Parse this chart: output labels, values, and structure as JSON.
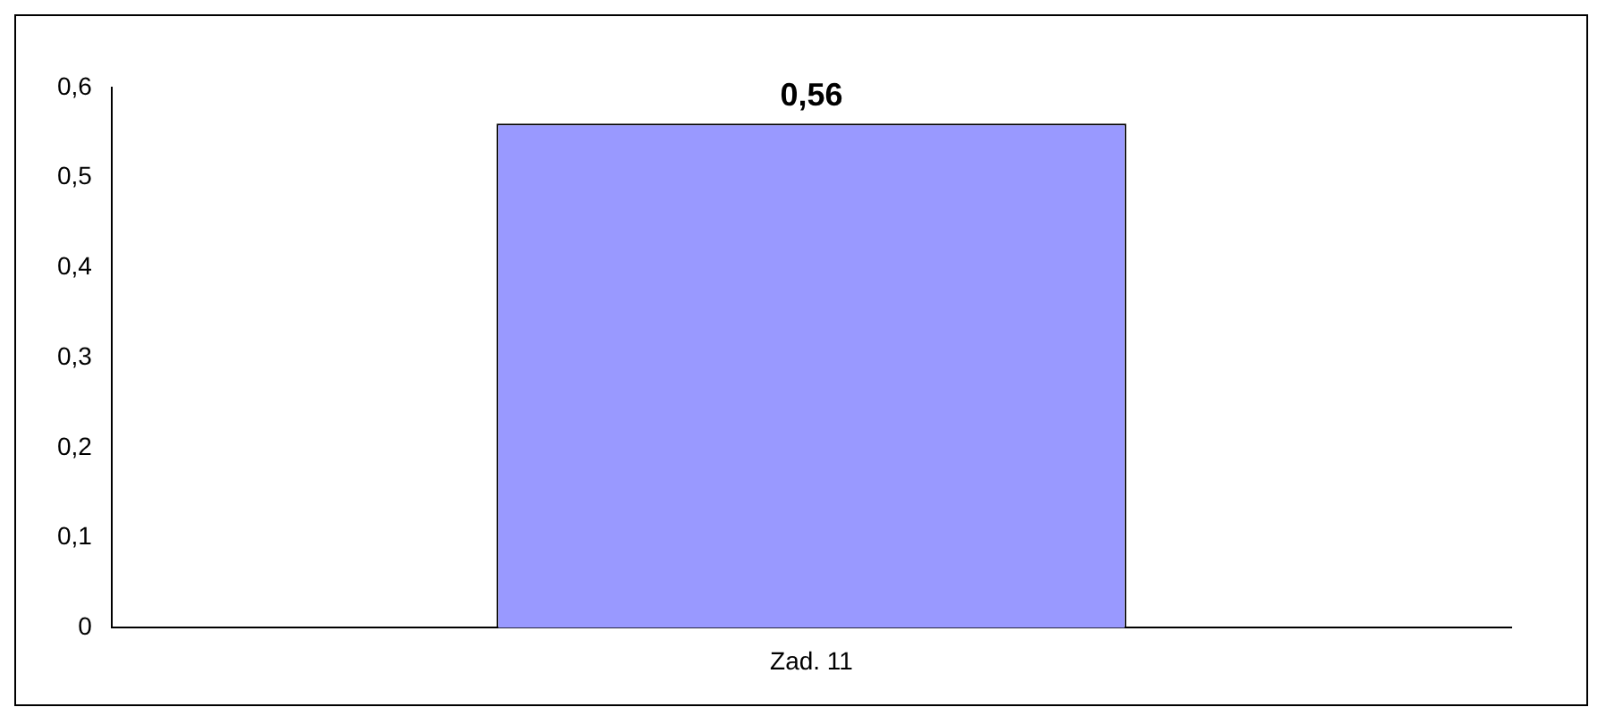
{
  "chart_data": {
    "type": "bar",
    "categories": [
      "Zad. 11"
    ],
    "values": [
      0.56
    ],
    "color": "#9999ff",
    "value_labels": [
      "0,56"
    ],
    "ylim": [
      0,
      0.6
    ],
    "yticks": [
      {
        "value": 0,
        "label": "0"
      },
      {
        "value": 0.1,
        "label": "0,1"
      },
      {
        "value": 0.2,
        "label": "0,2"
      },
      {
        "value": 0.3,
        "label": "0,3"
      },
      {
        "value": 0.4,
        "label": "0,4"
      },
      {
        "value": 0.5,
        "label": "0,5"
      },
      {
        "value": 0.6,
        "label": "0,6"
      }
    ]
  }
}
